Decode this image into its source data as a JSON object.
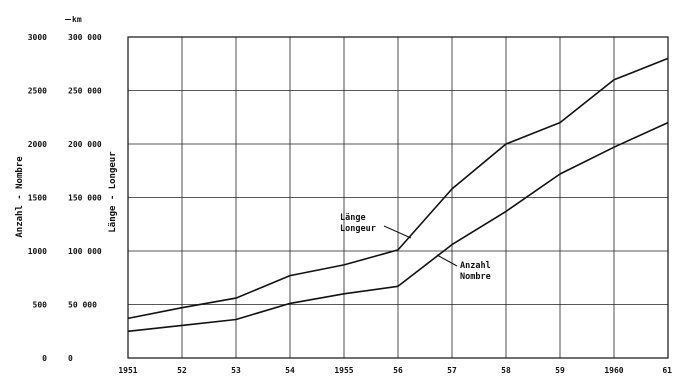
{
  "chart_data": {
    "type": "line",
    "x": [
      "1951",
      "52",
      "53",
      "54",
      "1955",
      "56",
      "57",
      "58",
      "59",
      "1960",
      "61"
    ],
    "left_axis": {
      "label": "Anzahl - Nombre",
      "ticks": [
        "0",
        "500",
        "1000",
        "1500",
        "2000",
        "2500",
        "3000"
      ],
      "ylim": [
        0,
        3000
      ]
    },
    "right_axis": {
      "label": "Länge - Longeur",
      "unit": "km",
      "ticks": [
        "0",
        "50 000",
        "100 000",
        "150 000",
        "200 000",
        "250 000",
        "300 000"
      ],
      "ylim": [
        0,
        300000
      ]
    },
    "series": [
      {
        "name_line1": "Länge",
        "name_line2": "Longeur",
        "axis": "right",
        "values": [
          37000,
          47000,
          56000,
          77000,
          87000,
          101000,
          158000,
          200000,
          220000,
          260000,
          280000
        ]
      },
      {
        "name_line1": "Anzahl",
        "name_line2": "Nombre",
        "axis": "left",
        "values": [
          250,
          305,
          360,
          510,
          600,
          670,
          1060,
          1370,
          1720,
          1970,
          2200
        ]
      }
    ],
    "grid": true,
    "legend": "inline annotations"
  }
}
